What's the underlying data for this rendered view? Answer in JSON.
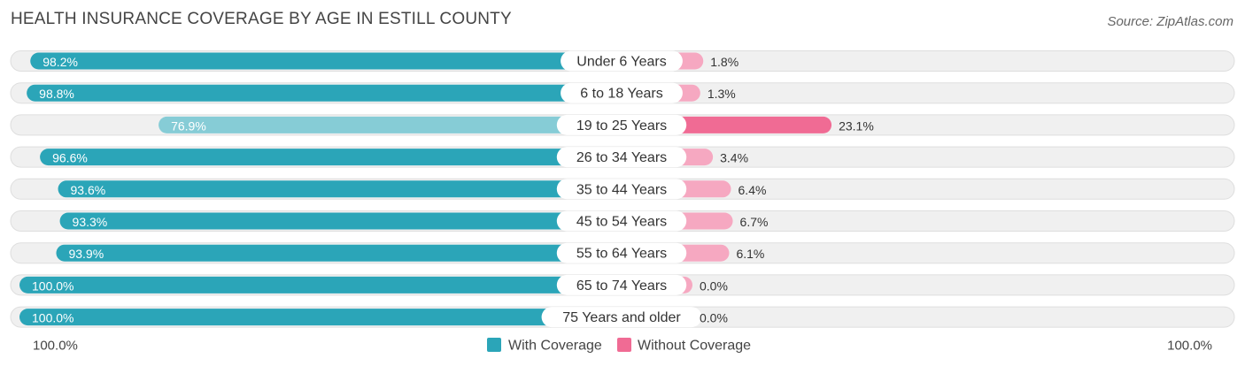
{
  "header": {
    "title": "HEALTH INSURANCE COVERAGE BY AGE IN ESTILL COUNTY",
    "source": "Source: ZipAtlas.com"
  },
  "colors": {
    "with_strong": "#2ba5b8",
    "with_light": "#86ccd6",
    "without_strong": "#f06b94",
    "without_light": "#f6a8c1",
    "track": "#f0f0f0",
    "track_border": "#dedede"
  },
  "chart_data": {
    "type": "bar",
    "orientation": "horizontal-diverging",
    "categories": [
      "Under 6 Years",
      "6 to 18 Years",
      "19 to 25 Years",
      "26 to 34 Years",
      "35 to 44 Years",
      "45 to 54 Years",
      "55 to 64 Years",
      "65 to 74 Years",
      "75 Years and older"
    ],
    "series": [
      {
        "name": "With Coverage",
        "values": [
          98.2,
          98.8,
          76.9,
          96.6,
          93.6,
          93.3,
          93.9,
          100.0,
          100.0
        ],
        "labels": [
          "98.2%",
          "98.8%",
          "76.9%",
          "96.6%",
          "93.6%",
          "93.3%",
          "93.9%",
          "100.0%",
          "100.0%"
        ]
      },
      {
        "name": "Without Coverage",
        "values": [
          1.8,
          1.3,
          23.1,
          3.4,
          6.4,
          6.7,
          6.1,
          0.0,
          0.0
        ],
        "labels": [
          "1.8%",
          "1.3%",
          "23.1%",
          "3.4%",
          "6.4%",
          "6.7%",
          "6.1%",
          "0.0%",
          "0.0%"
        ]
      }
    ],
    "axis": {
      "left_label": "100.0%",
      "right_label": "100.0%",
      "range": [
        0,
        100
      ]
    },
    "legend": {
      "position": "bottom-center",
      "entries": [
        "With Coverage",
        "Without Coverage"
      ]
    },
    "title": "HEALTH INSURANCE COVERAGE BY AGE IN ESTILL COUNTY"
  }
}
